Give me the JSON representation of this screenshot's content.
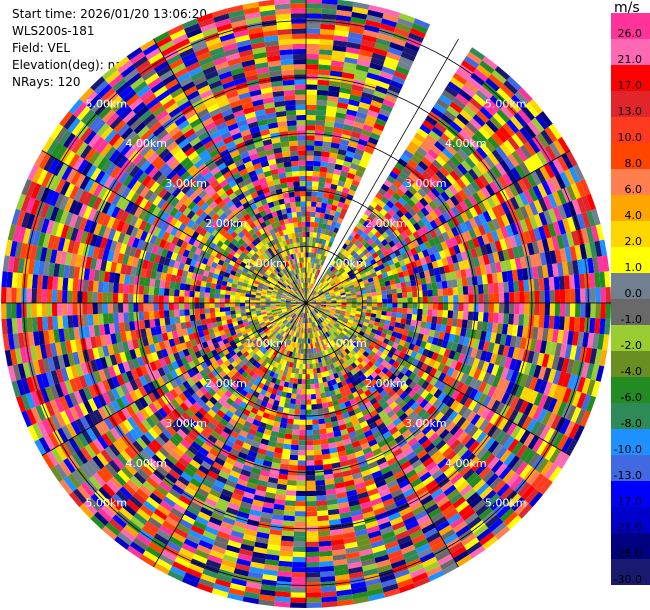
{
  "info": {
    "start_time": "Start time: 2026/01/20 13:06:20",
    "site": "WLS200s-181",
    "field": "Field: VEL",
    "elevation": "Elevation(deg): nan",
    "nrays": "NRays: 120"
  },
  "colorbar": {
    "unit": "m/s",
    "levels": [
      "26.0",
      "21.0",
      "17.0",
      "13.0",
      "10.0",
      "8.0",
      "6.0",
      "4.0",
      "2.0",
      "1.0",
      "0.0",
      "-1.0",
      "-2.0",
      "-4.0",
      "-6.0",
      "-8.0",
      "-10.0",
      "-13.0",
      "-17.0",
      "-21.0",
      "-26.0",
      "-30.0"
    ],
    "colors": [
      "#ff3399",
      "#ff69b4",
      "#ff0000",
      "#e0262a",
      "#ff3b1f",
      "#ff4500",
      "#ff7f50",
      "#ffa500",
      "#ffd700",
      "#ffff00",
      "#708090",
      "#696969",
      "#9acd32",
      "#6b8e23",
      "#228b22",
      "#2e8b57",
      "#1e90ff",
      "#4169e1",
      "#0000ff",
      "#0000cd",
      "#000080",
      "#191970"
    ]
  },
  "chart_data": {
    "type": "heatmap",
    "subtype": "PPI polar radial-velocity scan",
    "field": "VEL",
    "unit": "m/s",
    "nrays": 120,
    "missing_sector_deg": [
      22,
      33
    ],
    "range_rings_km": [
      1.0,
      2.0,
      3.0,
      4.0,
      5.0
    ],
    "ring_labels": [
      "1.00km",
      "2.00km",
      "3.00km",
      "4.00km",
      "5.00km"
    ],
    "max_range_km": 5.4,
    "color_scale_min": -30.0,
    "color_scale_max": 26.0
  }
}
